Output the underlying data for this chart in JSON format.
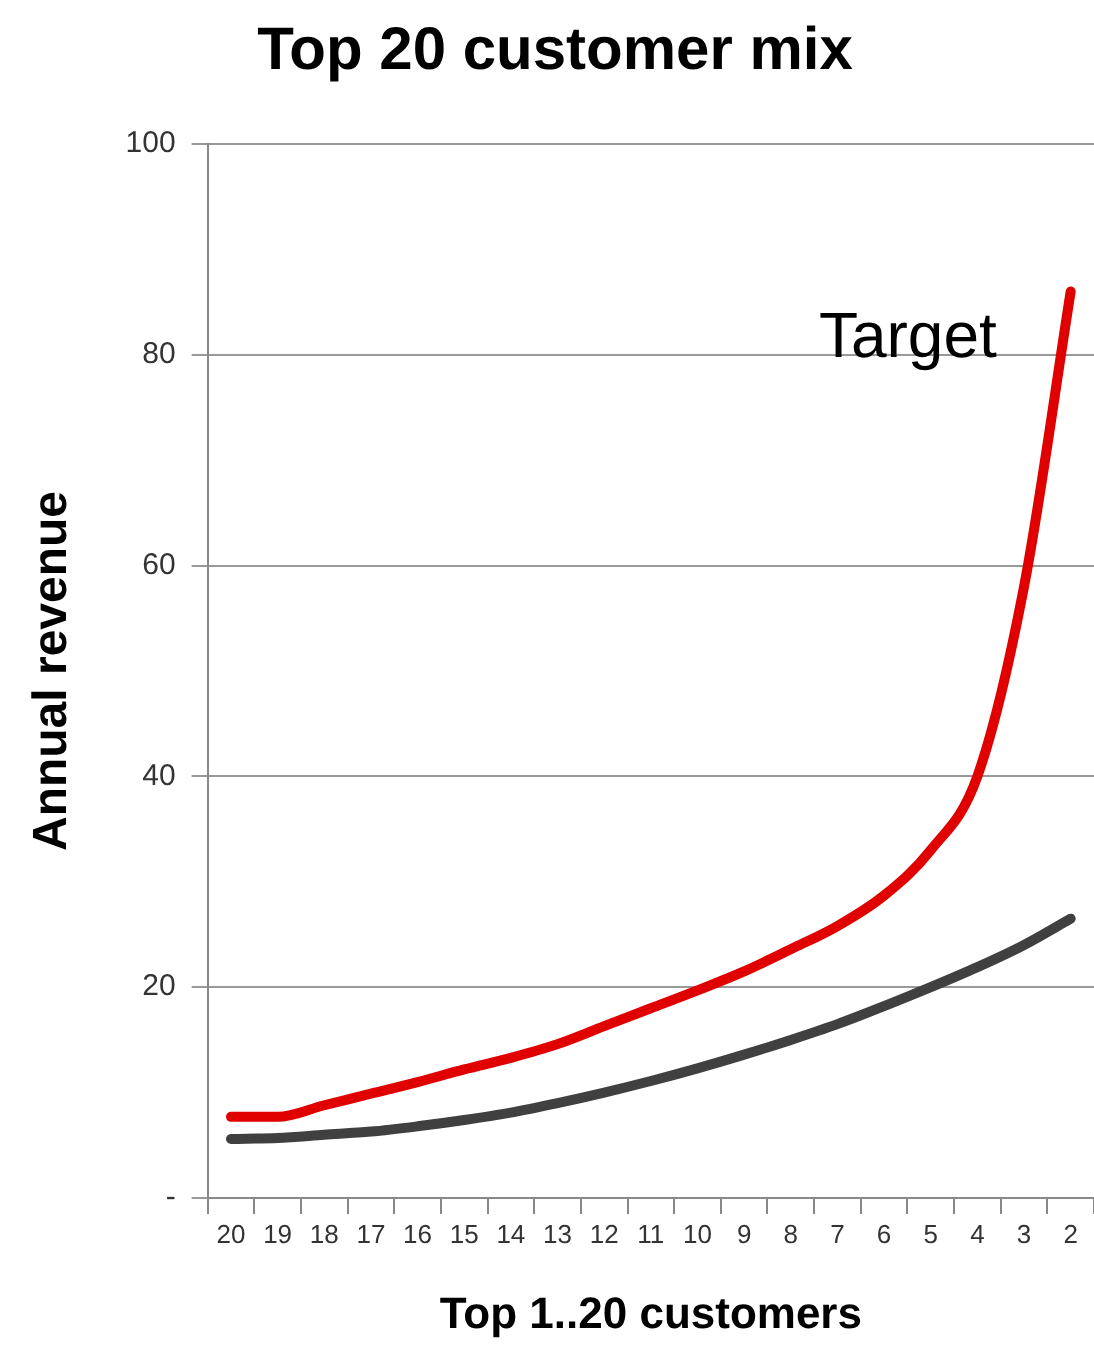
{
  "chart_data": {
    "type": "line",
    "title": "Top 20 customer mix",
    "xlabel": "Top 1..20 customers",
    "ylabel": "Annual revenue",
    "categories": [
      "20",
      "19",
      "18",
      "17",
      "16",
      "15",
      "14",
      "13",
      "12",
      "11",
      "10",
      "9",
      "8",
      "7",
      "6",
      "5",
      "4",
      "3",
      "2"
    ],
    "series": [
      {
        "color": "#e00000",
        "values": [
          7.7,
          7.7,
          8.8,
          9.9,
          11,
          12.2,
          13.3,
          14.6,
          16.3,
          18,
          19.7,
          21.5,
          23.6,
          25.8,
          28.7,
          33,
          40,
          58,
          86
        ]
      },
      {
        "color": "#404040",
        "values": [
          5.6,
          5.7,
          6,
          6.3,
          6.8,
          7.4,
          8.1,
          9,
          10,
          11.1,
          12.3,
          13.6,
          15,
          16.5,
          18.2,
          20,
          21.9,
          24,
          26.5
        ]
      }
    ],
    "ylim": [
      0,
      100
    ],
    "yticks": [
      {
        "value": 0,
        "label": "-"
      },
      20,
      40,
      60,
      80,
      100
    ],
    "grid": "y",
    "legend": false,
    "marker": "none",
    "line_style": "solid",
    "annotations": [
      "Target"
    ]
  }
}
